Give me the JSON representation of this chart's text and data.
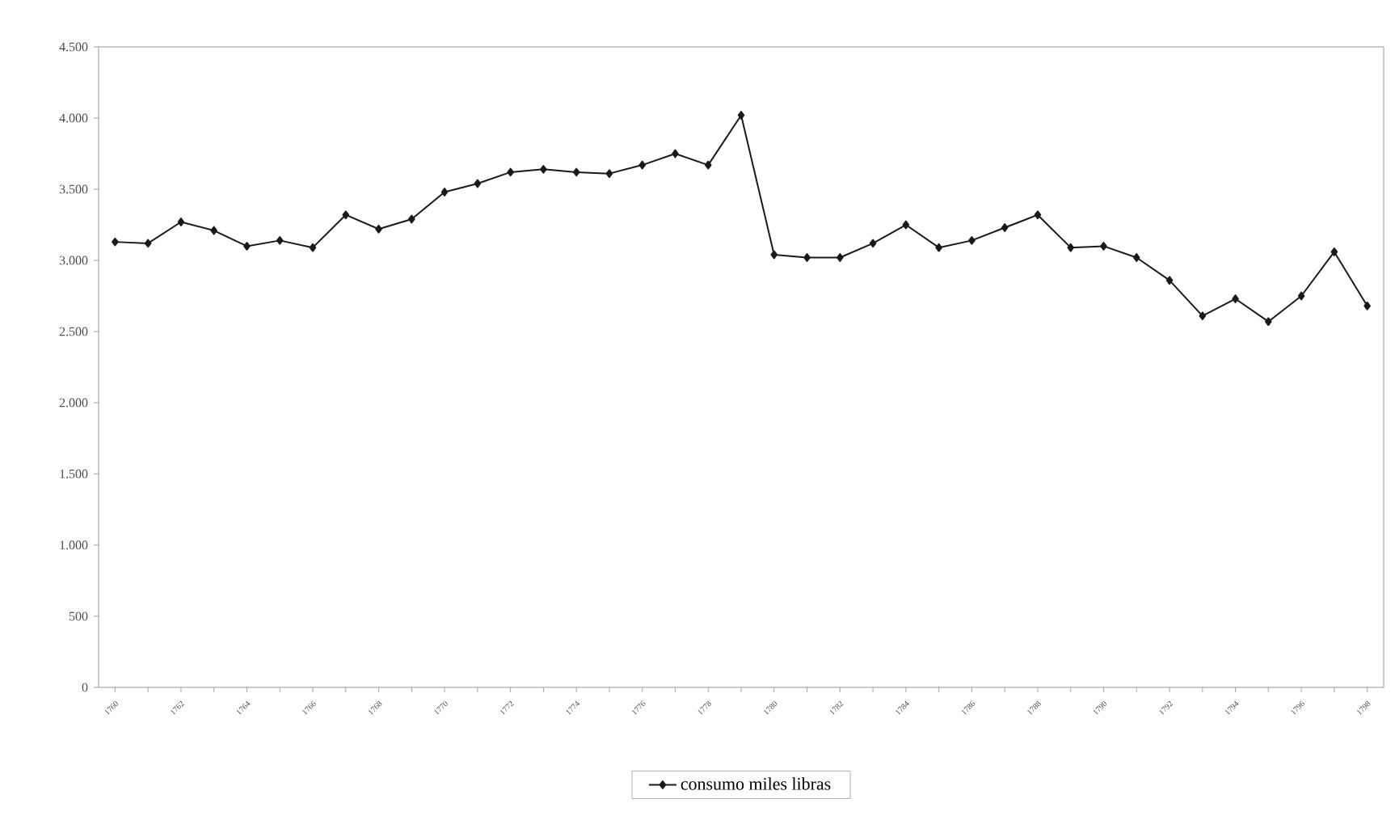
{
  "chart_data": {
    "type": "line",
    "x": [
      1760,
      1761,
      1762,
      1763,
      1764,
      1765,
      1766,
      1767,
      1768,
      1769,
      1770,
      1771,
      1772,
      1773,
      1774,
      1775,
      1776,
      1777,
      1778,
      1779,
      1780,
      1781,
      1782,
      1783,
      1784,
      1785,
      1786,
      1787,
      1788,
      1789,
      1790,
      1791,
      1792,
      1793,
      1794,
      1795,
      1796,
      1797,
      1798
    ],
    "series": [
      {
        "name": "consumo miles libras",
        "color": "#1a1a1a",
        "values": [
          3130,
          3120,
          3270,
          3210,
          3100,
          3140,
          3090,
          3320,
          3220,
          3290,
          3480,
          3540,
          3620,
          3640,
          3620,
          3610,
          3670,
          3750,
          3670,
          4020,
          3040,
          3020,
          3020,
          3120,
          3250,
          3090,
          3140,
          3230,
          3320,
          3090,
          3100,
          3020,
          2860,
          2610,
          2730,
          2570,
          2750,
          3060,
          2680
        ]
      }
    ],
    "xlim": [
      1759.5,
      1798.5
    ],
    "xticks": [
      1760,
      1762,
      1764,
      1766,
      1768,
      1770,
      1772,
      1774,
      1776,
      1778,
      1780,
      1782,
      1784,
      1786,
      1788,
      1790,
      1792,
      1794,
      1796,
      1798
    ],
    "ylim": [
      0,
      4500
    ],
    "yticks": [
      {
        "value": 0,
        "label": "0"
      },
      {
        "value": 500,
        "label": "500"
      },
      {
        "value": 1000,
        "label": "1.000"
      },
      {
        "value": 1500,
        "label": "1.500"
      },
      {
        "value": 2000,
        "label": "2.000"
      },
      {
        "value": 2500,
        "label": "2.500"
      },
      {
        "value": 3000,
        "label": "3.000"
      },
      {
        "value": 3500,
        "label": "3.500"
      },
      {
        "value": 4000,
        "label": "4.000"
      },
      {
        "value": 4500,
        "label": "4.500"
      }
    ],
    "grid": false,
    "legend": "bottom",
    "marker": "diamond",
    "line_style": "solid"
  }
}
